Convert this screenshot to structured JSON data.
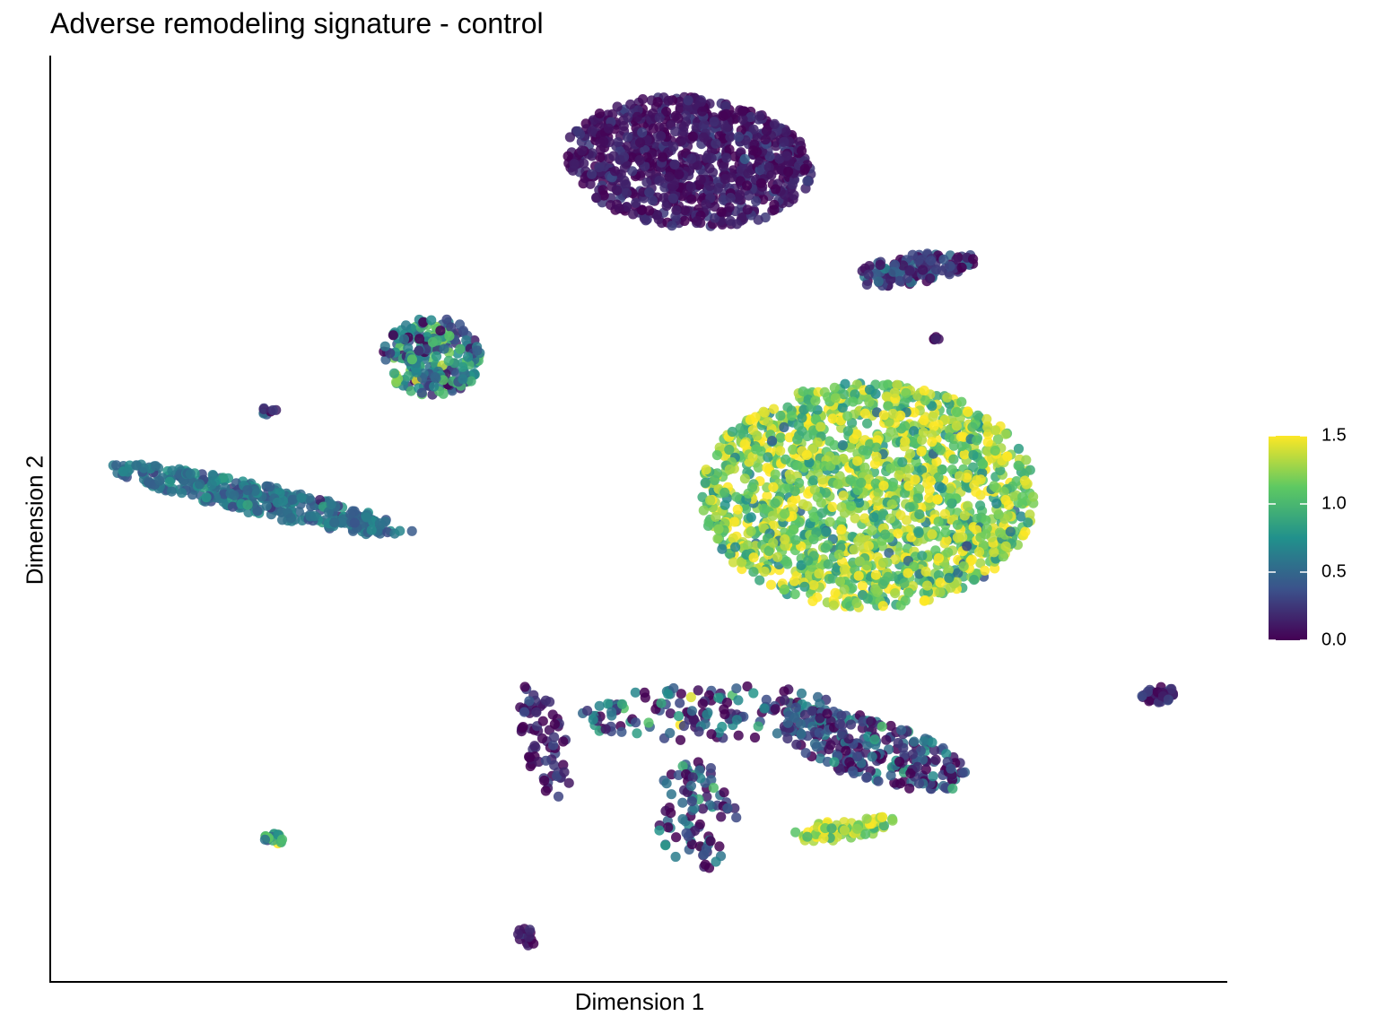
{
  "chart_data": {
    "type": "scatter",
    "title": "Adverse remodeling signature - control",
    "xlabel": "Dimension 1",
    "ylabel": "Dimension 2",
    "xlim": [
      0,
      100
    ],
    "ylim": [
      0,
      100
    ],
    "axis_ticks": "none",
    "grid": false,
    "legend": {
      "type": "colorbar",
      "placement": "right",
      "colormap": [
        "#440154",
        "#3b528b",
        "#21918c",
        "#5ec962",
        "#fde725"
      ],
      "range": [
        0.0,
        1.5
      ],
      "ticks": [
        "0.0",
        "0.5",
        "1.0",
        "1.5"
      ]
    },
    "clusters": [
      {
        "cx": 54.2,
        "cy": 88.5,
        "rx": 10.5,
        "ry": 7.0,
        "n": 900,
        "mean": 0.1,
        "sd": 0.1,
        "angle": -8
      },
      {
        "cx": 73.5,
        "cy": 77.0,
        "rx": 5.2,
        "ry": 1.6,
        "n": 120,
        "mean": 0.25,
        "sd": 0.2,
        "angle": 12
      },
      {
        "cx": 32.5,
        "cy": 67.5,
        "rx": 4.2,
        "ry": 4.2,
        "n": 230,
        "mean": 0.65,
        "sd": 0.35,
        "angle": 0
      },
      {
        "cx": 69.5,
        "cy": 52.5,
        "rx": 14.2,
        "ry": 12.2,
        "n": 1600,
        "mean": 1.2,
        "sd": 0.28,
        "angle": 0
      },
      {
        "cx": 18.0,
        "cy": 52.0,
        "rx": 13.5,
        "ry": 1.6,
        "n": 360,
        "mean": 0.55,
        "sd": 0.12,
        "angle": -16
      },
      {
        "cx": 56.0,
        "cy": 29.0,
        "rx": 11.5,
        "ry": 3.0,
        "n": 150,
        "mean": 0.35,
        "sd": 0.4,
        "angle": 2
      },
      {
        "cx": 70.0,
        "cy": 25.0,
        "rx": 8.5,
        "ry": 3.2,
        "n": 240,
        "mean": 0.3,
        "sd": 0.3,
        "angle": -22
      },
      {
        "cx": 67.5,
        "cy": 16.5,
        "rx": 4.5,
        "ry": 1.1,
        "n": 80,
        "mean": 1.3,
        "sd": 0.2,
        "angle": 10
      },
      {
        "cx": 42.0,
        "cy": 26.0,
        "rx": 2.0,
        "ry": 6.5,
        "n": 70,
        "mean": 0.1,
        "sd": 0.15,
        "angle": 12
      },
      {
        "cx": 55.0,
        "cy": 18.0,
        "rx": 3.5,
        "ry": 6.0,
        "n": 90,
        "mean": 0.3,
        "sd": 0.35,
        "angle": 5
      },
      {
        "cx": 94.2,
        "cy": 31.0,
        "rx": 1.5,
        "ry": 0.9,
        "n": 45,
        "mean": 0.15,
        "sd": 0.15,
        "angle": 0
      },
      {
        "cx": 19.0,
        "cy": 15.5,
        "rx": 0.8,
        "ry": 0.7,
        "n": 18,
        "mean": 0.9,
        "sd": 0.3,
        "angle": 0
      },
      {
        "cx": 40.6,
        "cy": 4.8,
        "rx": 1.0,
        "ry": 1.2,
        "n": 14,
        "mean": 0.1,
        "sd": 0.1,
        "angle": 0
      },
      {
        "cx": 18.6,
        "cy": 61.6,
        "rx": 0.8,
        "ry": 0.4,
        "n": 8,
        "mean": 0.2,
        "sd": 0.15,
        "angle": 0
      },
      {
        "cx": 75.3,
        "cy": 69.5,
        "rx": 0.3,
        "ry": 0.4,
        "n": 5,
        "mean": 0.05,
        "sd": 0.05,
        "angle": 0
      }
    ]
  }
}
